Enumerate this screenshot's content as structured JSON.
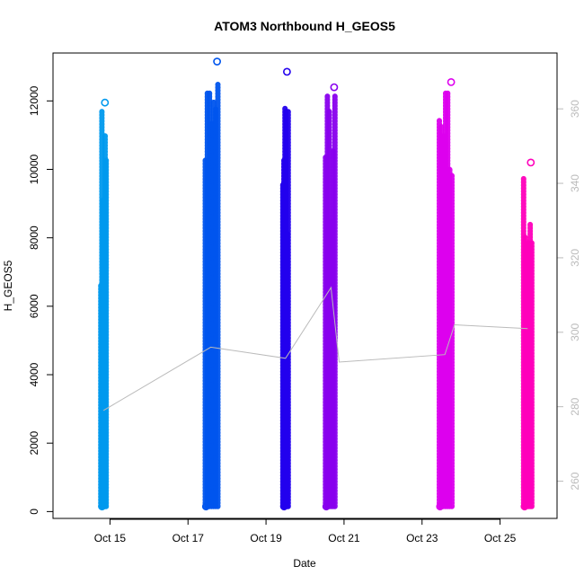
{
  "chart_data": {
    "type": "scatter",
    "title": "ATOM3 Northbound H_GEOS5",
    "xlabel": "Date",
    "ylabel": "H_GEOS5",
    "x_ticks": [
      "Oct 15",
      "Oct 17",
      "Oct 19",
      "Oct 21",
      "Oct 23",
      "Oct 25"
    ],
    "y_ticks": [
      "0",
      "2000",
      "4000",
      "6000",
      "8000",
      "10000",
      "12000"
    ],
    "y2_ticks": [
      "260",
      "280",
      "300",
      "320",
      "340",
      "360"
    ],
    "xlim": [
      "2016-10-14 00:00",
      "2016-10-26 00:00"
    ],
    "ylim": [
      -200,
      13400
    ],
    "y2lim": [
      250,
      375
    ],
    "colors": {
      "flight1": "#0099ee",
      "flight2": "#0055ee",
      "flight3": "#2200ee",
      "flight4": "#8800ee",
      "flight5": "#dd00ee",
      "flight6": "#ff00bb",
      "line": "#bbbbbb",
      "right_axis": "#bbbbbb"
    },
    "flights": [
      {
        "start": "2016-10-14 18:00",
        "end": "2016-10-14 22:00",
        "min": 150,
        "max": 11950,
        "color": "flight1"
      },
      {
        "start": "2016-10-17 10:00",
        "end": "2016-10-17 19:00",
        "min": 150,
        "max": 13150,
        "color": "flight2"
      },
      {
        "start": "2016-10-19 10:00",
        "end": "2016-10-19 14:00",
        "min": 150,
        "max": 12850,
        "color": "flight3"
      },
      {
        "start": "2016-10-20 12:00",
        "end": "2016-10-20 19:00",
        "min": 150,
        "max": 12400,
        "color": "flight4"
      },
      {
        "start": "2016-10-23 10:00",
        "end": "2016-10-23 19:00",
        "min": 150,
        "max": 12550,
        "color": "flight5"
      },
      {
        "start": "2016-10-25 14:00",
        "end": "2016-10-25 20:00",
        "min": 150,
        "max": 10200,
        "color": "flight6"
      }
    ],
    "line_series": {
      "name": "",
      "axis": "right",
      "x": [
        "2016-10-14 20:00",
        "2016-10-17 14:00",
        "2016-10-19 12:00",
        "2016-10-20 16:00",
        "2016-10-20 21:00",
        "2016-10-23 14:00",
        "2016-10-23 20:00",
        "2016-10-25 17:00"
      ],
      "y": [
        279,
        296,
        293,
        312,
        292,
        294,
        302,
        301
      ]
    }
  }
}
